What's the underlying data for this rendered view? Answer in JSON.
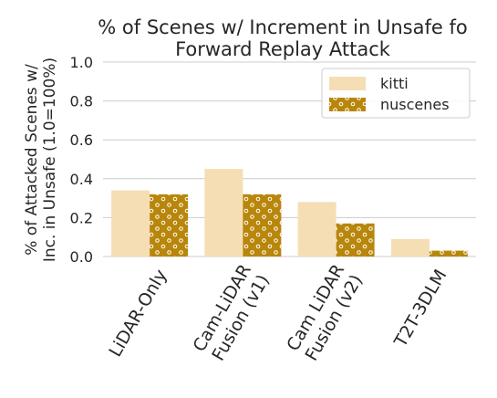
{
  "chart_data": {
    "type": "bar",
    "title": "% of Scenes w/ Increment in Unsafe for Forward Replay Attack",
    "title_lines": [
      "% of Scenes w/ Increment in Unsafe fo",
      "Forward Replay Attack"
    ],
    "ylabel": "% of Attacked Scenes w/ Inc. in Unsafe (1.0=100%)",
    "ylabel_lines": [
      "% of Attacked Scenes w/",
      "Inc. in Unsafe (1.0=100%)"
    ],
    "xlabel": "",
    "categories": [
      "LiDAR-Only",
      "Cam-LiDAR Fusion (v1)",
      "Cam LiDAR Fusion (v2)",
      "T2T-3DLM"
    ],
    "category_lines": [
      [
        "LiDAR-Only"
      ],
      [
        "Cam-LiDAR",
        "Fusion (v1)"
      ],
      [
        "Cam LiDAR",
        "Fusion (v2)"
      ],
      [
        "T2T-3DLM"
      ]
    ],
    "series": [
      {
        "name": "kitti",
        "values": [
          0.34,
          0.45,
          0.28,
          0.09
        ],
        "color": "#f5deb3",
        "pattern": "none"
      },
      {
        "name": "nuscenes",
        "values": [
          0.32,
          0.32,
          0.17,
          0.03
        ],
        "color": "#b8860b",
        "pattern": "dots"
      }
    ],
    "ylim": [
      0,
      1.0
    ],
    "yticks": [
      0.0,
      0.2,
      0.4,
      0.6,
      0.8,
      1.0
    ],
    "ytick_labels": [
      "0.0",
      "0.2",
      "0.4",
      "0.6",
      "0.8",
      "1.0"
    ],
    "grid": "horizontal",
    "legend_position": "top-right",
    "colors": {
      "grid": "#cccccc",
      "text": "#262626"
    }
  }
}
